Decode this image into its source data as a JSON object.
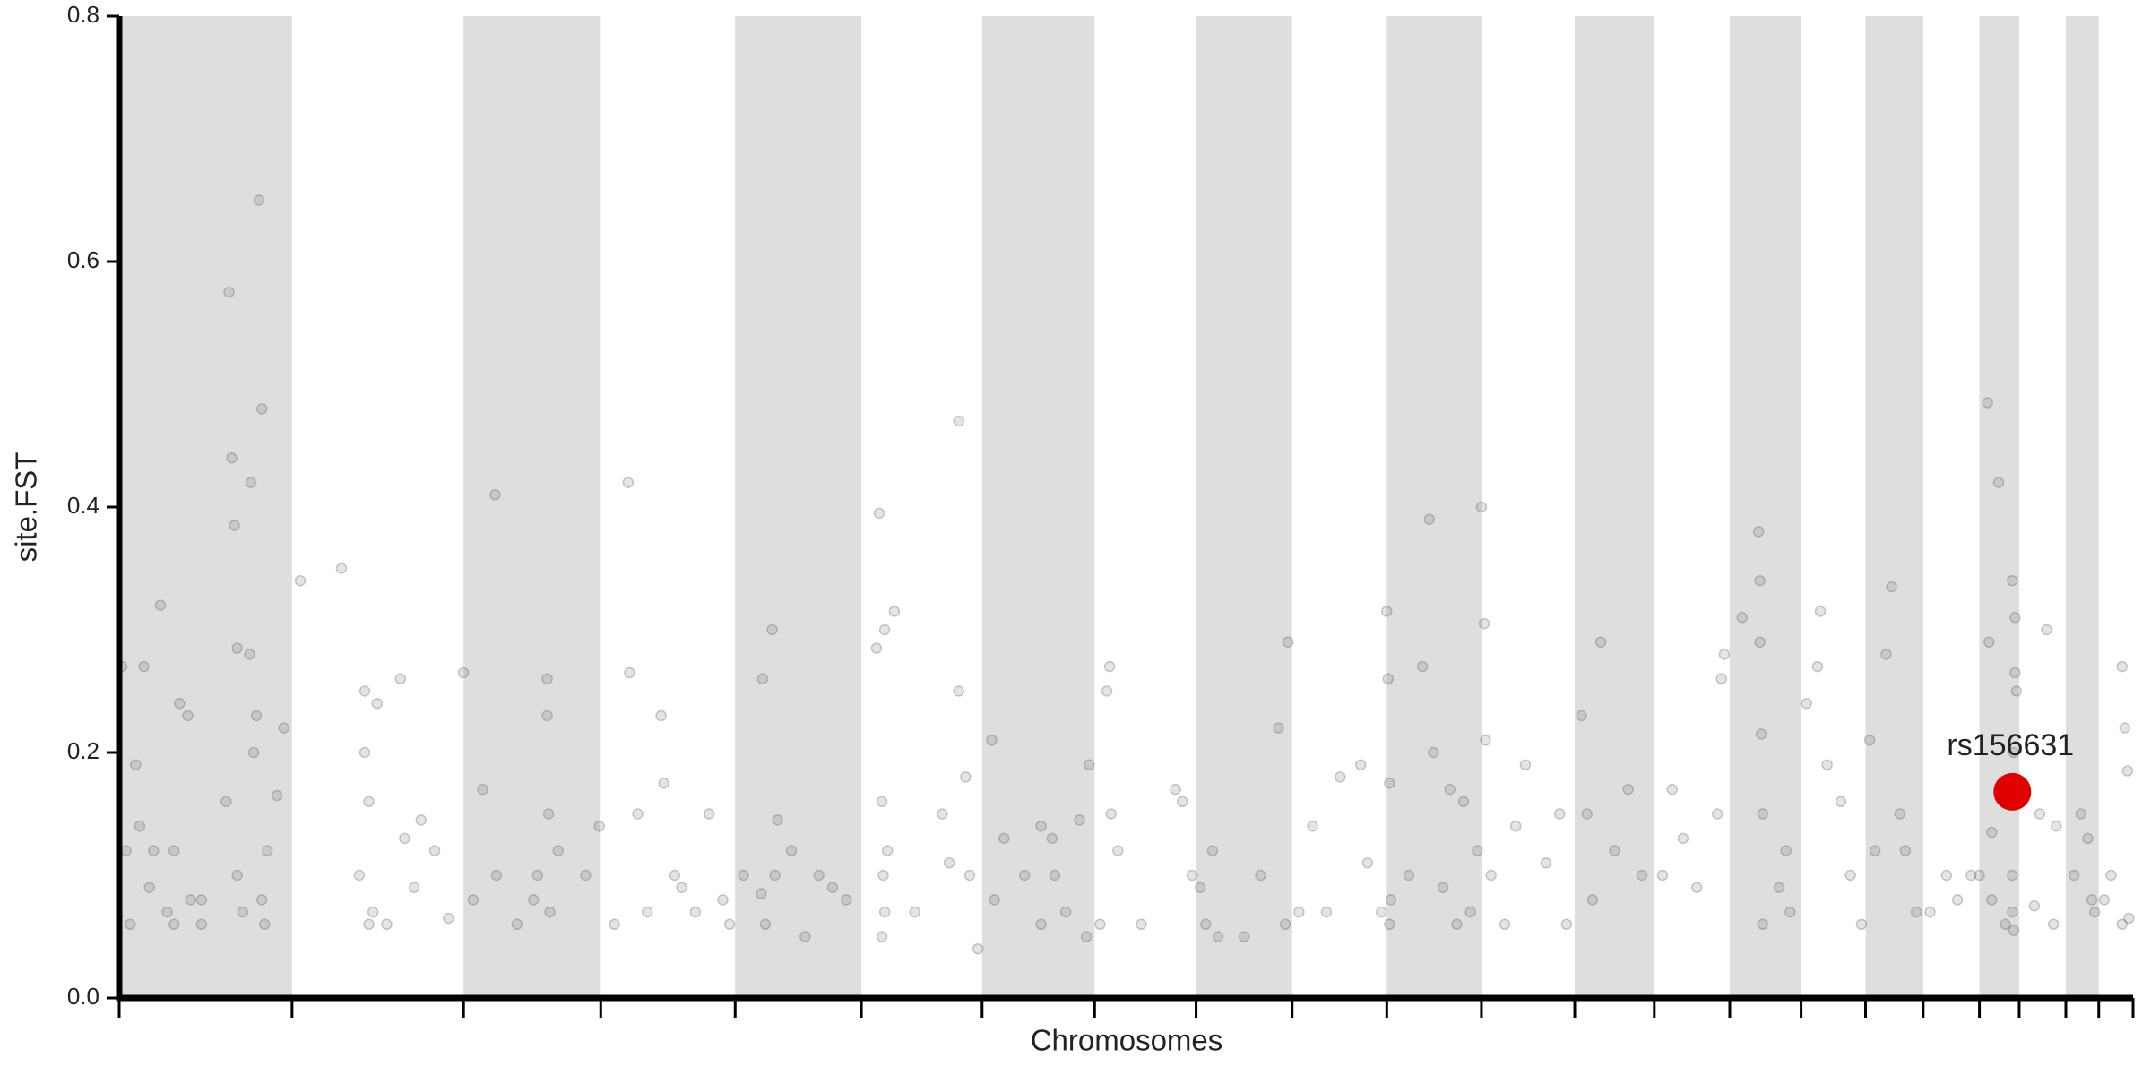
{
  "chart_data": {
    "type": "scatter",
    "xlabel": "Chromosomes",
    "ylabel": "site.FST",
    "xlim": [
      0,
      1468
    ],
    "ylim": [
      0,
      0.8
    ],
    "yticks": [
      {
        "value": 0,
        "label": "0.0"
      },
      0.2,
      0.4,
      0.6,
      0.8
    ],
    "chromosome_boundaries": [
      0,
      126,
      251,
      351,
      449,
      541,
      629,
      711,
      785,
      855,
      924,
      993,
      1061,
      1119,
      1174,
      1226,
      1273,
      1315,
      1356,
      1385,
      1419,
      1443,
      1468
    ],
    "band_color": "#dedede",
    "series": [
      {
        "color": "#555555",
        "x": [
          2,
          5,
          8,
          12,
          15,
          18,
          22,
          25,
          30,
          35,
          40,
          44,
          50,
          52,
          60,
          78,
          80,
          82,
          84,
          86,
          86,
          90,
          95,
          96,
          98,
          100,
          102,
          104,
          104,
          106,
          108,
          115,
          120,
          40,
          60,
          132,
          162,
          175,
          179,
          182,
          185,
          188,
          195,
          205,
          208,
          215,
          220,
          230,
          240,
          179,
          182,
          251,
          258,
          265,
          274,
          290,
          302,
          312,
          312,
          313,
          314,
          320,
          340,
          350,
          305,
          275,
          361,
          371,
          372,
          378,
          385,
          395,
          397,
          405,
          410,
          420,
          430,
          440,
          445,
          455,
          468,
          469,
          471,
          476,
          478,
          480,
          490,
          500,
          510,
          530,
          520,
          552,
          554,
          556,
          558,
          558,
          557,
          560,
          556,
          565,
          580,
          600,
          612,
          612,
          617,
          620,
          626,
          605,
          636,
          638,
          645,
          660,
          672,
          680,
          682,
          690,
          700,
          705,
          707,
          672,
          715,
          720,
          722,
          723,
          728,
          745,
          770,
          775,
          782,
          788,
          792,
          797,
          801,
          820,
          832,
          845,
          850,
          852,
          860,
          870,
          880,
          890,
          905,
          910,
          920,
          924,
          925,
          926,
          927,
          926,
          940,
          950,
          955,
          958,
          965,
          970,
          980,
          985,
          990,
          975,
          993,
          995,
          996,
          1000,
          1010,
          1018,
          1025,
          1040,
          1050,
          1055,
          1066,
          1070,
          1074,
          1080,
          1090,
          1100,
          1110,
          1125,
          1132,
          1140,
          1150,
          1165,
          1170,
          1168,
          1183,
          1195,
          1196,
          1196,
          1197,
          1198,
          1198,
          1210,
          1218,
          1215,
          1230,
          1238,
          1240,
          1245,
          1255,
          1262,
          1270,
          1276,
          1280,
          1288,
          1292,
          1298,
          1302,
          1310,
          1320,
          1332,
          1340,
          1350,
          1356,
          1362,
          1363,
          1365,
          1370,
          1375,
          1380,
          1382,
          1382,
          1383,
          1381,
          1380,
          1380,
          1381,
          1365,
          1396,
          1405,
          1410,
          1412,
          1400,
          1425,
          1430,
          1435,
          1440,
          1438,
          1447,
          1452,
          1460,
          1462,
          1464,
          1465,
          1460
        ],
        "values": [
          0.27,
          0.12,
          0.06,
          0.19,
          0.14,
          0.27,
          0.09,
          0.12,
          0.32,
          0.07,
          0.12,
          0.24,
          0.23,
          0.08,
          0.06,
          0.16,
          0.575,
          0.44,
          0.385,
          0.1,
          0.285,
          0.07,
          0.28,
          0.42,
          0.2,
          0.23,
          0.65,
          0.48,
          0.08,
          0.06,
          0.12,
          0.165,
          0.22,
          0.06,
          0.08,
          0.34,
          0.35,
          0.1,
          0.25,
          0.16,
          0.07,
          0.24,
          0.06,
          0.26,
          0.13,
          0.09,
          0.145,
          0.12,
          0.065,
          0.2,
          0.06,
          0.265,
          0.08,
          0.17,
          0.41,
          0.06,
          0.08,
          0.26,
          0.23,
          0.15,
          0.07,
          0.12,
          0.1,
          0.14,
          0.1,
          0.1,
          0.06,
          0.42,
          0.265,
          0.15,
          0.07,
          0.23,
          0.175,
          0.1,
          0.09,
          0.07,
          0.15,
          0.08,
          0.06,
          0.1,
          0.085,
          0.26,
          0.06,
          0.3,
          0.1,
          0.145,
          0.12,
          0.05,
          0.1,
          0.08,
          0.09,
          0.285,
          0.395,
          0.16,
          0.3,
          0.07,
          0.1,
          0.12,
          0.05,
          0.315,
          0.07,
          0.15,
          0.47,
          0.25,
          0.18,
          0.1,
          0.04,
          0.11,
          0.21,
          0.08,
          0.13,
          0.1,
          0.14,
          0.13,
          0.1,
          0.07,
          0.145,
          0.05,
          0.19,
          0.06,
          0.06,
          0.25,
          0.27,
          0.15,
          0.12,
          0.06,
          0.17,
          0.16,
          0.1,
          0.09,
          0.06,
          0.12,
          0.05,
          0.05,
          0.1,
          0.22,
          0.06,
          0.29,
          0.07,
          0.14,
          0.07,
          0.18,
          0.19,
          0.11,
          0.07,
          0.315,
          0.26,
          0.175,
          0.08,
          0.06,
          0.1,
          0.27,
          0.39,
          0.2,
          0.09,
          0.17,
          0.16,
          0.07,
          0.12,
          0.06,
          0.4,
          0.305,
          0.21,
          0.1,
          0.06,
          0.14,
          0.19,
          0.11,
          0.15,
          0.06,
          0.23,
          0.15,
          0.08,
          0.29,
          0.12,
          0.17,
          0.1,
          0.1,
          0.17,
          0.13,
          0.09,
          0.15,
          0.28,
          0.26,
          0.31,
          0.38,
          0.34,
          0.29,
          0.215,
          0.15,
          0.06,
          0.09,
          0.07,
          0.12,
          0.24,
          0.27,
          0.315,
          0.19,
          0.16,
          0.1,
          0.06,
          0.21,
          0.12,
          0.28,
          0.335,
          0.15,
          0.12,
          0.07,
          0.07,
          0.1,
          0.08,
          0.1,
          0.1,
          0.485,
          0.29,
          0.135,
          0.42,
          0.06,
          0.34,
          0.31,
          0.265,
          0.25,
          0.2,
          0.1,
          0.07,
          0.055,
          0.08,
          0.075,
          0.3,
          0.06,
          0.14,
          0.15,
          0.1,
          0.15,
          0.13,
          0.07,
          0.08,
          0.08,
          0.1,
          0.27,
          0.22,
          0.185,
          0.065,
          0.06
        ]
      }
    ],
    "highlight": {
      "label": "rs156631",
      "x": 1380,
      "value": 0.168,
      "color": "#e00000"
    }
  }
}
